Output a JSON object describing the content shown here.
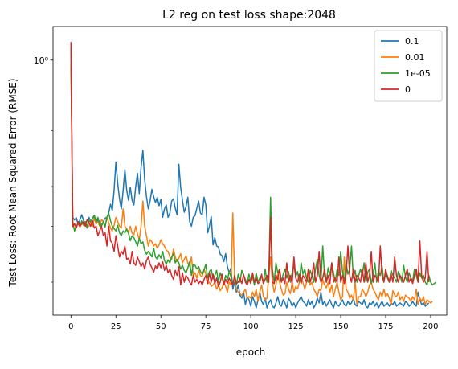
{
  "chart_data": {
    "type": "line",
    "title": "L2 reg on test loss shape:2048",
    "xlabel": "epoch",
    "ylabel": "Test Loss: Root Mean Squared Error (RMSE)",
    "xlim": [
      -9.95,
      208.95
    ],
    "ylim": [
      0.1575,
      1.2755
    ],
    "yscale": "log",
    "grid": false,
    "legend_position": "top-right",
    "x_ticks": [
      0,
      25,
      50,
      75,
      100,
      125,
      150,
      175,
      200
    ],
    "y_ticks": [
      {
        "value": 1.0,
        "label": "10⁰"
      }
    ],
    "y_minor_ticks": [
      0.2,
      0.3,
      0.4,
      0.6
    ],
    "x": {
      "start": 0,
      "end": 199,
      "step": 1
    },
    "series": [
      {
        "name": "0.1",
        "color": "#1f77b4",
        "values": [
          1.09,
          0.32,
          0.314,
          0.319,
          0.304,
          0.314,
          0.326,
          0.313,
          0.307,
          0.296,
          0.32,
          0.311,
          0.3,
          0.322,
          0.305,
          0.314,
          0.31,
          0.302,
          0.31,
          0.318,
          0.32,
          0.33,
          0.352,
          0.336,
          0.39,
          0.478,
          0.41,
          0.366,
          0.34,
          0.388,
          0.452,
          0.39,
          0.362,
          0.398,
          0.362,
          0.35,
          0.4,
          0.44,
          0.38,
          0.46,
          0.52,
          0.42,
          0.372,
          0.34,
          0.36,
          0.392,
          0.372,
          0.356,
          0.37,
          0.348,
          0.364,
          0.32,
          0.34,
          0.35,
          0.32,
          0.33,
          0.36,
          0.366,
          0.342,
          0.326,
          0.47,
          0.398,
          0.362,
          0.332,
          0.346,
          0.37,
          0.31,
          0.3,
          0.32,
          0.324,
          0.342,
          0.36,
          0.33,
          0.326,
          0.37,
          0.35,
          0.286,
          0.3,
          0.322,
          0.262,
          0.276,
          0.26,
          0.258,
          0.245,
          0.242,
          0.232,
          0.246,
          0.224,
          0.214,
          0.222,
          0.19,
          0.2,
          0.186,
          0.196,
          0.182,
          0.178,
          0.186,
          0.17,
          0.18,
          0.176,
          0.168,
          0.18,
          0.174,
          0.166,
          0.176,
          0.186,
          0.174,
          0.17,
          0.178,
          0.166,
          0.172,
          0.176,
          0.168,
          0.166,
          0.172,
          0.18,
          0.17,
          0.168,
          0.176,
          0.172,
          0.166,
          0.178,
          0.174,
          0.168,
          0.172,
          0.166,
          0.172,
          0.176,
          0.18,
          0.174,
          0.172,
          0.168,
          0.176,
          0.17,
          0.174,
          0.166,
          0.17,
          0.178,
          0.172,
          0.186,
          0.17,
          0.174,
          0.168,
          0.172,
          0.176,
          0.17,
          0.166,
          0.174,
          0.17,
          0.168,
          0.172,
          0.176,
          0.17,
          0.168,
          0.174,
          0.17,
          0.172,
          0.178,
          0.17,
          0.168,
          0.174,
          0.172,
          0.17,
          0.176,
          0.168,
          0.166,
          0.172,
          0.17,
          0.174,
          0.168,
          0.172,
          0.166,
          0.17,
          0.174,
          0.168,
          0.17,
          0.172,
          0.168,
          0.172,
          0.17,
          0.174,
          0.168,
          0.17,
          0.172,
          0.17,
          0.168,
          0.174,
          0.172,
          0.168,
          0.17,
          0.174,
          0.17,
          0.168,
          0.186,
          0.176,
          0.17,
          0.172,
          0.168,
          0.17,
          0.172
        ]
      },
      {
        "name": "0.01",
        "color": "#ff7f0e",
        "values": [
          0.98,
          0.3,
          0.295,
          0.3,
          0.305,
          0.298,
          0.307,
          0.302,
          0.31,
          0.298,
          0.3,
          0.312,
          0.3,
          0.318,
          0.305,
          0.31,
          0.3,
          0.315,
          0.31,
          0.3,
          0.32,
          0.308,
          0.296,
          0.29,
          0.302,
          0.32,
          0.31,
          0.3,
          0.296,
          0.34,
          0.3,
          0.294,
          0.288,
          0.3,
          0.285,
          0.282,
          0.3,
          0.284,
          0.272,
          0.3,
          0.36,
          0.3,
          0.28,
          0.26,
          0.272,
          0.268,
          0.26,
          0.264,
          0.256,
          0.262,
          0.272,
          0.264,
          0.26,
          0.252,
          0.25,
          0.24,
          0.236,
          0.254,
          0.24,
          0.232,
          0.238,
          0.246,
          0.23,
          0.236,
          0.242,
          0.23,
          0.224,
          0.24,
          0.21,
          0.214,
          0.206,
          0.218,
          0.21,
          0.208,
          0.22,
          0.212,
          0.198,
          0.2,
          0.194,
          0.196,
          0.2,
          0.19,
          0.196,
          0.188,
          0.192,
          0.2,
          0.194,
          0.186,
          0.2,
          0.196,
          0.33,
          0.21,
          0.19,
          0.186,
          0.184,
          0.182,
          0.186,
          0.19,
          0.178,
          0.18,
          0.178,
          0.186,
          0.18,
          0.19,
          0.174,
          0.186,
          0.196,
          0.18,
          0.176,
          0.178,
          0.21,
          0.24,
          0.2,
          0.186,
          0.196,
          0.212,
          0.2,
          0.19,
          0.182,
          0.184,
          0.2,
          0.19,
          0.184,
          0.2,
          0.186,
          0.194,
          0.19,
          0.2,
          0.206,
          0.2,
          0.19,
          0.2,
          0.212,
          0.196,
          0.2,
          0.19,
          0.186,
          0.18,
          0.19,
          0.188,
          0.204,
          0.196,
          0.192,
          0.2,
          0.186,
          0.196,
          0.18,
          0.19,
          0.2,
          0.186,
          0.176,
          0.18,
          0.24,
          0.19,
          0.186,
          0.178,
          0.182,
          0.176,
          0.2,
          0.17,
          0.18,
          0.18,
          0.19,
          0.186,
          0.18,
          0.186,
          0.196,
          0.2,
          0.19,
          0.186,
          0.18,
          0.176,
          0.186,
          0.18,
          0.19,
          0.18,
          0.184,
          0.178,
          0.17,
          0.188,
          0.182,
          0.18,
          0.186,
          0.176,
          0.18,
          0.174,
          0.182,
          0.18,
          0.178,
          0.174,
          0.18,
          0.176,
          0.19,
          0.17,
          0.178,
          0.174,
          0.18,
          0.17,
          0.176,
          0.174,
          0.172,
          0.174
        ]
      },
      {
        "name": "1e-05",
        "color": "#2ca02c",
        "values": [
          0.97,
          0.31,
          0.29,
          0.3,
          0.306,
          0.3,
          0.312,
          0.304,
          0.31,
          0.298,
          0.312,
          0.31,
          0.318,
          0.325,
          0.31,
          0.32,
          0.302,
          0.3,
          0.31,
          0.298,
          0.32,
          0.33,
          0.312,
          0.3,
          0.295,
          0.29,
          0.302,
          0.286,
          0.28,
          0.29,
          0.286,
          0.294,
          0.285,
          0.27,
          0.28,
          0.276,
          0.268,
          0.26,
          0.275,
          0.264,
          0.268,
          0.252,
          0.245,
          0.25,
          0.246,
          0.24,
          0.256,
          0.24,
          0.236,
          0.244,
          0.238,
          0.25,
          0.234,
          0.228,
          0.235,
          0.23,
          0.24,
          0.246,
          0.23,
          0.236,
          0.23,
          0.22,
          0.226,
          0.218,
          0.214,
          0.222,
          0.232,
          0.21,
          0.228,
          0.226,
          0.22,
          0.224,
          0.216,
          0.212,
          0.218,
          0.228,
          0.206,
          0.216,
          0.22,
          0.205,
          0.21,
          0.218,
          0.2,
          0.214,
          0.206,
          0.198,
          0.21,
          0.204,
          0.216,
          0.208,
          0.2,
          0.206,
          0.196,
          0.212,
          0.2,
          0.218,
          0.21,
          0.204,
          0.198,
          0.212,
          0.2,
          0.208,
          0.196,
          0.214,
          0.2,
          0.206,
          0.21,
          0.198,
          0.22,
          0.2,
          0.21,
          0.37,
          0.22,
          0.2,
          0.23,
          0.214,
          0.22,
          0.2,
          0.212,
          0.22,
          0.206,
          0.216,
          0.2,
          0.214,
          0.226,
          0.208,
          0.216,
          0.2,
          0.23,
          0.212,
          0.22,
          0.206,
          0.2,
          0.218,
          0.21,
          0.2,
          0.22,
          0.236,
          0.21,
          0.2,
          0.26,
          0.21,
          0.2,
          0.222,
          0.21,
          0.23,
          0.214,
          0.2,
          0.22,
          0.21,
          0.25,
          0.216,
          0.2,
          0.23,
          0.212,
          0.22,
          0.26,
          0.206,
          0.218,
          0.2,
          0.21,
          0.22,
          0.21,
          0.23,
          0.2,
          0.215,
          0.22,
          0.198,
          0.21,
          0.23,
          0.2,
          0.218,
          0.21,
          0.225,
          0.2,
          0.214,
          0.21,
          0.2,
          0.218,
          0.21,
          0.206,
          0.2,
          0.216,
          0.21,
          0.2,
          0.226,
          0.208,
          0.2,
          0.214,
          0.206,
          0.202,
          0.22,
          0.21,
          0.2,
          0.214,
          0.206,
          0.21,
          0.2,
          0.196,
          0.21,
          0.2,
          0.196,
          0.198,
          0.2
        ]
      },
      {
        "name": "0",
        "color": "#d62728",
        "values": [
          1.14,
          0.3,
          0.305,
          0.296,
          0.31,
          0.3,
          0.305,
          0.31,
          0.3,
          0.315,
          0.308,
          0.3,
          0.312,
          0.296,
          0.3,
          0.28,
          0.29,
          0.3,
          0.28,
          0.286,
          0.26,
          0.3,
          0.27,
          0.265,
          0.25,
          0.28,
          0.26,
          0.24,
          0.25,
          0.245,
          0.26,
          0.236,
          0.238,
          0.228,
          0.25,
          0.23,
          0.226,
          0.24,
          0.232,
          0.224,
          0.23,
          0.22,
          0.234,
          0.24,
          0.228,
          0.222,
          0.215,
          0.225,
          0.22,
          0.23,
          0.222,
          0.232,
          0.218,
          0.226,
          0.214,
          0.22,
          0.21,
          0.204,
          0.218,
          0.21,
          0.224,
          0.196,
          0.214,
          0.2,
          0.21,
          0.206,
          0.2,
          0.196,
          0.21,
          0.2,
          0.204,
          0.198,
          0.202,
          0.196,
          0.204,
          0.21,
          0.198,
          0.214,
          0.2,
          0.212,
          0.198,
          0.206,
          0.194,
          0.2,
          0.212,
          0.196,
          0.204,
          0.198,
          0.206,
          0.2,
          0.196,
          0.21,
          0.198,
          0.2,
          0.206,
          0.198,
          0.212,
          0.2,
          0.196,
          0.204,
          0.198,
          0.214,
          0.2,
          0.206,
          0.198,
          0.2,
          0.212,
          0.198,
          0.204,
          0.21,
          0.2,
          0.32,
          0.2,
          0.198,
          0.21,
          0.204,
          0.22,
          0.2,
          0.206,
          0.198,
          0.23,
          0.2,
          0.21,
          0.198,
          0.24,
          0.206,
          0.2,
          0.212,
          0.198,
          0.21,
          0.206,
          0.2,
          0.22,
          0.2,
          0.21,
          0.23,
          0.2,
          0.21,
          0.25,
          0.2,
          0.206,
          0.22,
          0.2,
          0.21,
          0.198,
          0.23,
          0.2,
          0.206,
          0.2,
          0.24,
          0.2,
          0.21,
          0.198,
          0.212,
          0.26,
          0.21,
          0.2,
          0.22,
          0.2,
          0.21,
          0.206,
          0.2,
          0.22,
          0.2,
          0.23,
          0.2,
          0.21,
          0.25,
          0.2,
          0.21,
          0.206,
          0.2,
          0.26,
          0.21,
          0.2,
          0.22,
          0.206,
          0.2,
          0.212,
          0.2,
          0.24,
          0.21,
          0.2,
          0.21,
          0.206,
          0.2,
          0.21,
          0.22,
          0.2,
          0.206,
          0.198,
          0.21,
          0.22,
          0.2,
          0.27,
          0.21,
          0.2,
          0.206,
          0.25,
          0.2
        ]
      }
    ]
  }
}
